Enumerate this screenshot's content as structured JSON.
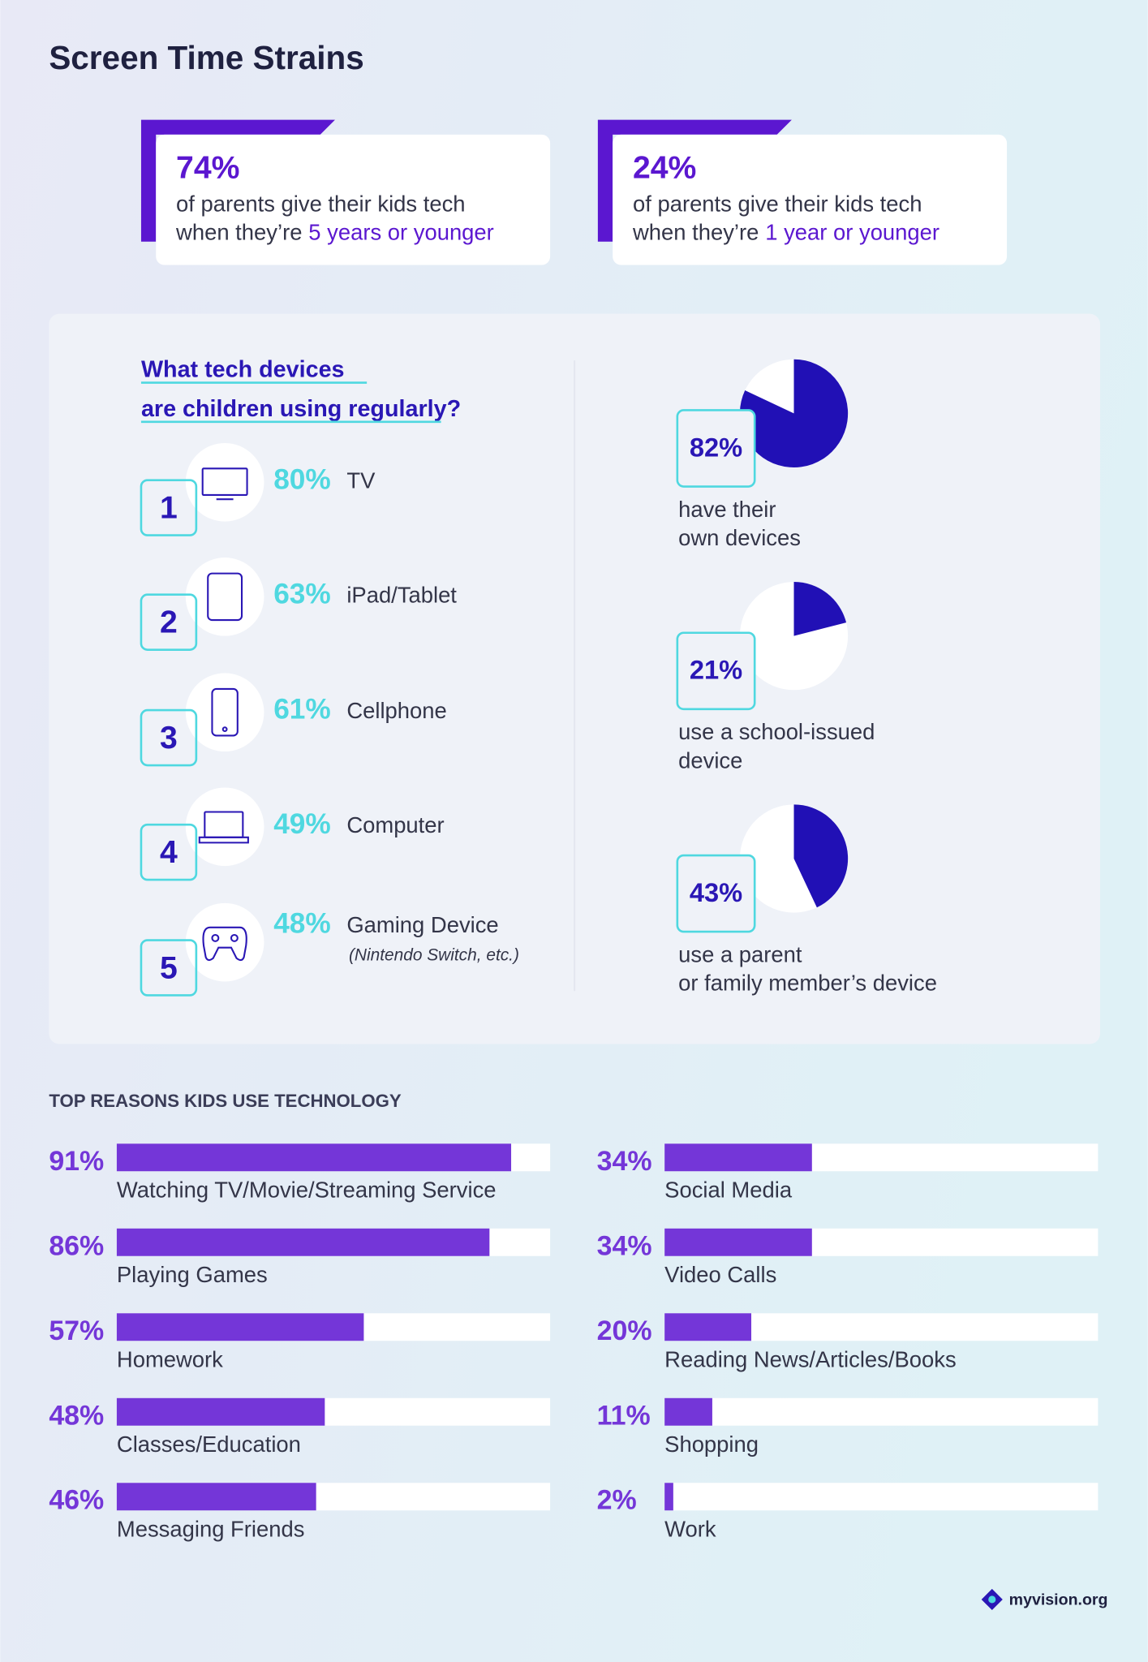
{
  "header": {
    "title": "Screen Time Strains"
  },
  "stats": [
    {
      "pct": "74%",
      "line1": "of parents give their kids tech",
      "line2": "when they’re",
      "highlight": "5 years or younger"
    },
    {
      "pct": "24%",
      "line1": "of parents give their kids tech",
      "line2": "when they’re",
      "highlight": "1 year or younger"
    }
  ],
  "devices": {
    "heading": [
      "What tech devices",
      "are children using regularly?"
    ],
    "items": [
      {
        "rank": "1",
        "pct": "80%",
        "name": "TV"
      },
      {
        "rank": "2",
        "pct": "63%",
        "name": "iPad/Tablet"
      },
      {
        "rank": "3",
        "pct": "61%",
        "name": "Cellphone"
      },
      {
        "rank": "4",
        "pct": "49%",
        "name": "Computer"
      },
      {
        "rank": "5",
        "pct": "48%",
        "name": "Gaming Device",
        "note": "(Nintendo Switch, etc.)"
      }
    ]
  },
  "ownership": [
    {
      "value": 82,
      "label": "82%",
      "caption": [
        "have their",
        "own devices"
      ]
    },
    {
      "value": 21,
      "label": "21%",
      "caption": [
        "use a school-issued",
        "device"
      ]
    },
    {
      "value": 43,
      "label": "43%",
      "caption": [
        "use a parent",
        "or family member’s device"
      ]
    }
  ],
  "reasons": {
    "title": "TOP REASONS KIDS USE TECHNOLOGY",
    "max": 100,
    "items": [
      {
        "value": 91,
        "label": "91%",
        "name": "Watching TV/Movie/Streaming Service"
      },
      {
        "value": 86,
        "label": "86%",
        "name": "Playing Games"
      },
      {
        "value": 57,
        "label": "57%",
        "name": "Homework"
      },
      {
        "value": 48,
        "label": "48%",
        "name": "Classes/Education"
      },
      {
        "value": 46,
        "label": "46%",
        "name": "Messaging Friends"
      },
      {
        "value": 34,
        "label": "34%",
        "name": "Social Media"
      },
      {
        "value": 34,
        "label": "34%",
        "name": "Video Calls"
      },
      {
        "value": 20,
        "label": "20%",
        "name": "Reading News/Articles/Books"
      },
      {
        "value": 11,
        "label": "11%",
        "name": "Shopping"
      },
      {
        "value": 2,
        "label": "2%",
        "name": "Work"
      }
    ]
  },
  "footer": {
    "brand": "myvision.org"
  }
}
